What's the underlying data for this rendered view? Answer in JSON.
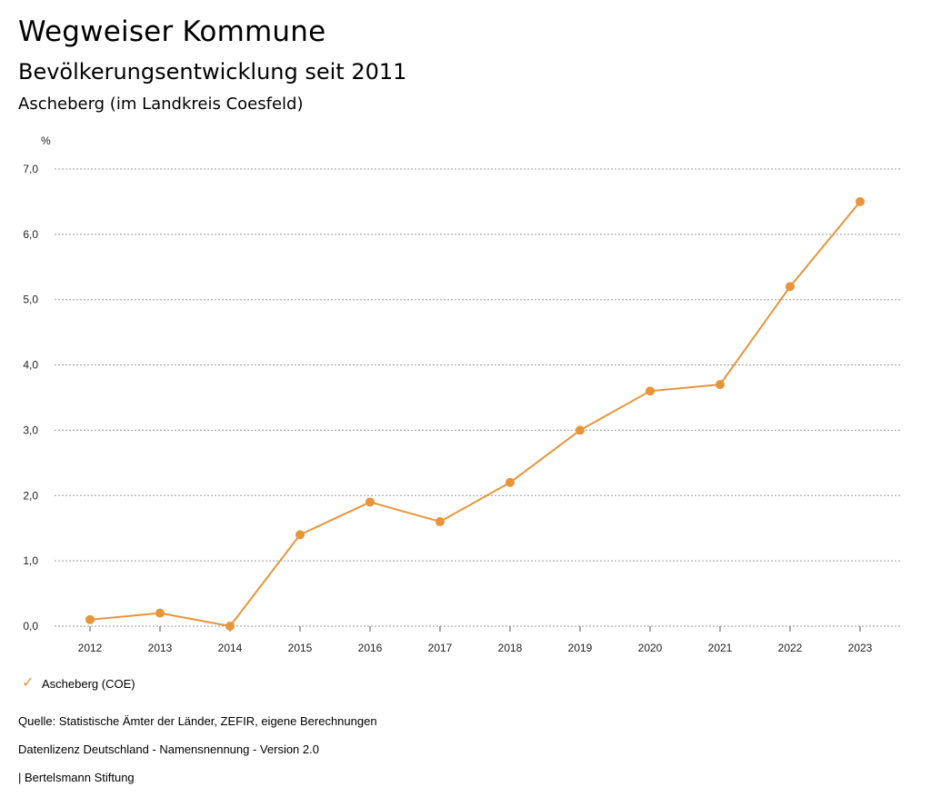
{
  "header": {
    "title": "Wegweiser Kommune",
    "subtitle": "Bevölkerungsentwicklung seit 2011",
    "region": "Ascheberg (im Landkreis Coesfeld)"
  },
  "chart_data": {
    "type": "line",
    "unit_label": "%",
    "categories": [
      "2012",
      "2013",
      "2014",
      "2015",
      "2016",
      "2017",
      "2018",
      "2019",
      "2020",
      "2021",
      "2022",
      "2023"
    ],
    "series": [
      {
        "name": "Ascheberg (COE)",
        "color": "#e8953a",
        "values": [
          0.1,
          0.2,
          0.0,
          1.4,
          1.9,
          1.6,
          2.2,
          3.0,
          3.6,
          3.7,
          5.2,
          6.5
        ]
      }
    ],
    "yticks": [
      "0,0",
      "1,0",
      "2,0",
      "3,0",
      "4,0",
      "5,0",
      "6,0",
      "7,0"
    ],
    "ylim": [
      0,
      7
    ],
    "grid": true,
    "legend_position": "bottom-left"
  },
  "legend": {
    "icon": "check-icon",
    "label": "Ascheberg (COE)"
  },
  "footer": {
    "source": "Quelle: Statistische Ämter der Länder, ZEFIR, eigene Berechnungen",
    "license": "Datenlizenz Deutschland - Namensnennung - Version 2.0",
    "publisher": "| Bertelsmann Stiftung"
  }
}
